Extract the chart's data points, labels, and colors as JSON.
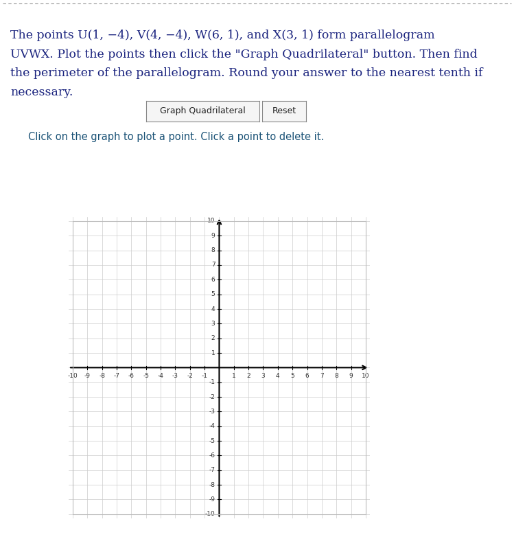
{
  "title_text_line1": "The points U(1, −4), V(4, −4), W(6, 1), and X(3, 1) form parallelogram",
  "title_text_line2": "UVWX. Plot the points then click the \"Graph Quadrilateral\" button. Then find",
  "title_text_line3": "the perimeter of the parallelogram. Round your answer to the nearest tenth if",
  "title_text_line4": "necessary.",
  "title_color": "#1a237e",
  "title_fontsize": 12.5,
  "button1_text": "Graph Quadrilateral",
  "button2_text": "Reset",
  "instruction_text": "Click on the graph to plot a point. Click a point to delete it.",
  "instruction_color": "#1a5276",
  "instruction_fontsize": 10.5,
  "axis_min": -10,
  "axis_max": 10,
  "grid_color": "#cccccc",
  "tick_color": "#333333",
  "tick_fontsize": 6.5,
  "background_color": "#ffffff",
  "graph_bg": "#ffffff",
  "dashed_color": "#999999"
}
